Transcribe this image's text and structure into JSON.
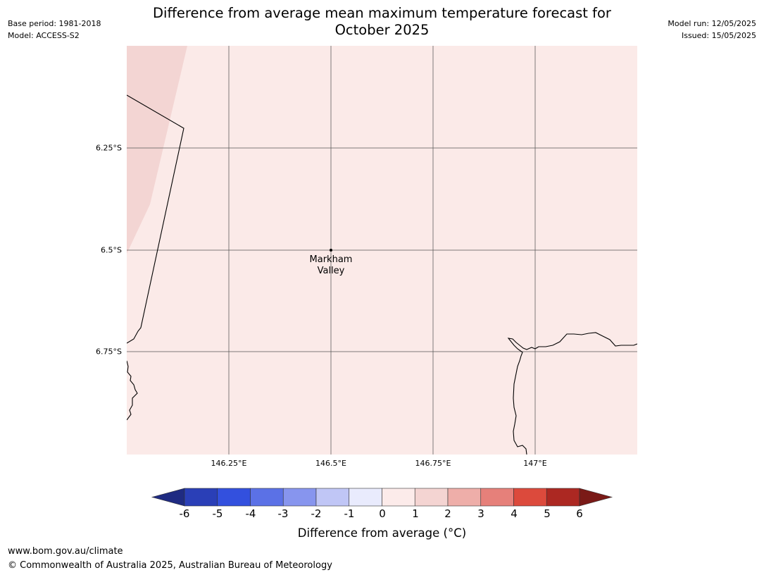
{
  "header": {
    "title_line1": "Difference from average mean maximum temperature forecast for",
    "title_line2": "October 2025",
    "base_period": "Base period: 1981-2018",
    "model": "Model: ACCESS-S2",
    "model_run": "Model run: 12/05/2025",
    "issued": "Issued: 15/05/2025"
  },
  "map": {
    "place_label_line1": "Markham",
    "place_label_line2": "Valley",
    "lat_ticks": [
      "6.25°S",
      "6.5°S",
      "6.75°S"
    ],
    "lon_ticks": [
      "146.25°E",
      "146.5°E",
      "146.75°E",
      "147°E"
    ],
    "background_color": "#fbeae8",
    "upper_left_zone_color": "#f3d5d3"
  },
  "colorbar": {
    "ticks": [
      "-6",
      "-5",
      "-4",
      "-3",
      "-2",
      "-1",
      "0",
      "1",
      "2",
      "3",
      "4",
      "5",
      "6"
    ],
    "colors": [
      "#1f2b82",
      "#2a3fb7",
      "#3350de",
      "#5b71e6",
      "#8795ee",
      "#c0c6f6",
      "#e9ebfd",
      "#fcebea",
      "#f4d4d2",
      "#eeaea9",
      "#e6807a",
      "#dc4a3c",
      "#ac2822",
      "#7a1a17"
    ],
    "label": "Difference from average (°C)"
  },
  "footer": {
    "url": "www.bom.gov.au/climate",
    "copyright": "© Commonwealth of Australia 2025, Australian Bureau of Meteorology"
  }
}
